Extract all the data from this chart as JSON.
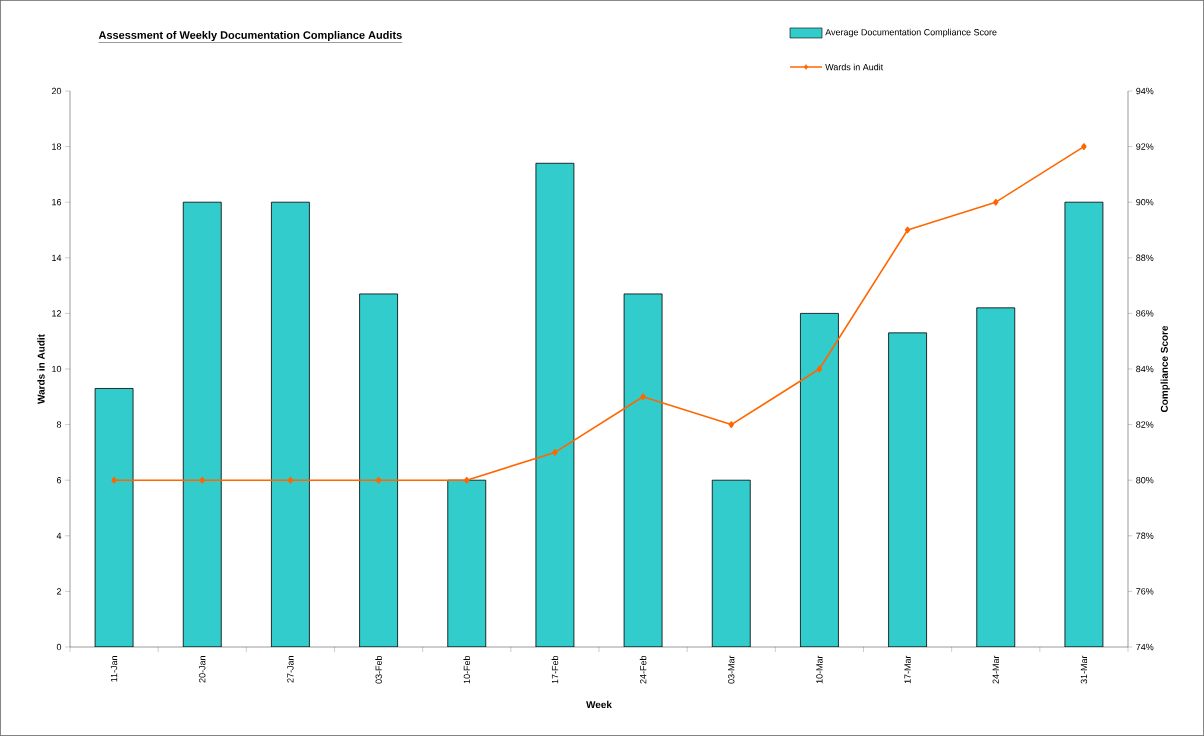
{
  "chart_data": {
    "type": "bar",
    "title": "Assessment of Weekly Documentation Compliance Audits",
    "xlabel": "Week",
    "ylabel": "Wards in Audit",
    "y2label": "Compliance Score",
    "categories": [
      "11-Jan",
      "20-Jan",
      "27-Jan",
      "03-Feb",
      "10-Feb",
      "17-Feb",
      "24-Feb",
      "03-Mar",
      "10-Mar",
      "17-Mar",
      "24-Mar",
      "31-Mar"
    ],
    "series": [
      {
        "name": "Average Documentation Compliance Score",
        "axis": "y2",
        "color": "#33cccc",
        "values": [
          83.3,
          90,
          90,
          86.7,
          80,
          91.4,
          86.7,
          80,
          86,
          85.3,
          86.2,
          90
        ]
      },
      {
        "name": "Wards in Audit",
        "type": "line",
        "color": "#ff6600",
        "values": [
          6,
          6,
          6,
          6,
          6,
          7,
          9,
          8,
          10,
          15,
          16,
          18
        ]
      }
    ],
    "ylim": [
      0,
      20
    ],
    "yticks": [
      0,
      2,
      4,
      6,
      8,
      10,
      12,
      14,
      16,
      18,
      20
    ],
    "y2lim": [
      74,
      94
    ],
    "y2ticks": [
      {
        "value": 74,
        "label": "74%"
      },
      {
        "value": 76,
        "label": "76%"
      },
      {
        "value": 78,
        "label": "78%"
      },
      {
        "value": 80,
        "label": "80%"
      },
      {
        "value": 82,
        "label": "82%"
      },
      {
        "value": 84,
        "label": "84%"
      },
      {
        "value": 86,
        "label": "86%"
      },
      {
        "value": 88,
        "label": "88%"
      },
      {
        "value": 90,
        "label": "90%"
      },
      {
        "value": 92,
        "label": "92%"
      },
      {
        "value": 94,
        "label": "94%"
      }
    ],
    "legend": "top right",
    "marker": "diamond",
    "grid": false
  }
}
